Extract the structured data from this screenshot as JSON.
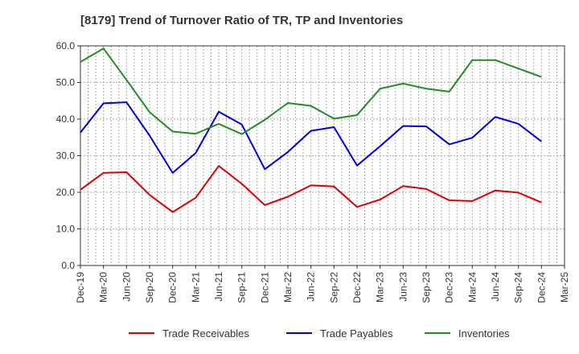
{
  "chart_data": {
    "type": "line",
    "title": "[8179]  Trend of Turnover Ratio of TR, TP and Inventories",
    "xlabel": "",
    "ylabel": "",
    "ylim": [
      0,
      60
    ],
    "yticks": [
      "0.0",
      "10.0",
      "20.0",
      "30.0",
      "40.0",
      "50.0",
      "60.0"
    ],
    "grid": true,
    "legend_position": "bottom",
    "x_ticks": [
      "Dec-19",
      "Mar-20",
      "Jun-20",
      "Sep-20",
      "Dec-20",
      "Mar-21",
      "Jun-21",
      "Sep-21",
      "Dec-21",
      "Mar-22",
      "Jun-22",
      "Sep-22",
      "Dec-22",
      "Mar-23",
      "Jun-23",
      "Sep-23",
      "Dec-23",
      "Mar-24",
      "Jun-24",
      "Sep-24",
      "Dec-24",
      "Mar-25"
    ],
    "x": [
      "Dec-19",
      "Jan-20",
      "Feb-20",
      "Mar-20",
      "Apr-20",
      "May-20",
      "Jun-20",
      "Jul-20",
      "Aug-20",
      "Sep-20",
      "Oct-20",
      "Nov-20",
      "Dec-20",
      "Jan-21",
      "Feb-21",
      "Mar-21",
      "Apr-21",
      "May-21",
      "Jun-21",
      "Jul-21",
      "Aug-21",
      "Sep-21",
      "Oct-21",
      "Nov-21",
      "Dec-21",
      "Jan-22",
      "Feb-22",
      "Mar-22",
      "Apr-22",
      "May-22",
      "Jun-22",
      "Jul-22",
      "Aug-22",
      "Sep-22",
      "Oct-22",
      "Nov-22",
      "Dec-22",
      "Jan-23",
      "Feb-23",
      "Mar-23",
      "Apr-23",
      "May-23",
      "Jun-23",
      "Jul-23",
      "Aug-23",
      "Sep-23",
      "Oct-23",
      "Nov-23",
      "Dec-23",
      "Jan-24",
      "Feb-24",
      "Mar-24",
      "Apr-24",
      "May-24",
      "Jun-24",
      "Jul-24",
      "Aug-24",
      "Sep-24",
      "Oct-24",
      "Nov-24",
      "Dec-24"
    ],
    "series": [
      {
        "name": "Trade Receivables",
        "color": "#dd0000",
        "values": [
          20.7,
          null,
          null,
          25.3,
          null,
          null,
          25.5,
          null,
          null,
          19.3,
          null,
          null,
          14.6,
          null,
          null,
          18.5,
          null,
          null,
          27.2,
          null,
          null,
          22.3,
          null,
          null,
          16.5,
          null,
          null,
          18.8,
          null,
          null,
          21.9,
          null,
          null,
          21.6,
          null,
          null,
          16.0,
          null,
          null,
          18.0,
          null,
          null,
          21.7,
          null,
          null,
          20.9,
          null,
          null,
          17.8,
          null,
          null,
          17.6,
          null,
          null,
          20.5,
          null,
          null,
          19.9,
          null,
          null,
          17.2
        ]
      },
      {
        "name": "Trade Payables",
        "color": "#0000dd",
        "values": [
          36.3,
          null,
          null,
          44.3,
          null,
          null,
          44.6,
          null,
          null,
          35.5,
          null,
          null,
          25.3,
          null,
          null,
          30.7,
          null,
          null,
          42.0,
          null,
          null,
          38.5,
          null,
          null,
          26.3,
          null,
          null,
          31.0,
          null,
          null,
          36.8,
          null,
          null,
          37.8,
          null,
          null,
          27.3,
          null,
          null,
          32.6,
          null,
          null,
          38.1,
          null,
          null,
          38.0,
          null,
          null,
          33.1,
          null,
          null,
          34.9,
          null,
          null,
          40.6,
          null,
          null,
          38.7,
          null,
          null,
          33.9
        ]
      },
      {
        "name": "Inventories",
        "color": "#228b22",
        "values": [
          55.6,
          null,
          null,
          59.3,
          null,
          null,
          50.7,
          null,
          null,
          41.9,
          null,
          null,
          36.6,
          null,
          null,
          36.0,
          null,
          null,
          38.7,
          null,
          null,
          35.9,
          null,
          null,
          39.8,
          null,
          null,
          44.4,
          null,
          null,
          43.6,
          null,
          null,
          40.1,
          null,
          null,
          41.1,
          null,
          null,
          48.3,
          null,
          null,
          49.7,
          null,
          null,
          48.3,
          null,
          null,
          47.5,
          null,
          null,
          56.1,
          null,
          null,
          56.1,
          null,
          null,
          53.8,
          null,
          null,
          51.5
        ]
      }
    ]
  }
}
